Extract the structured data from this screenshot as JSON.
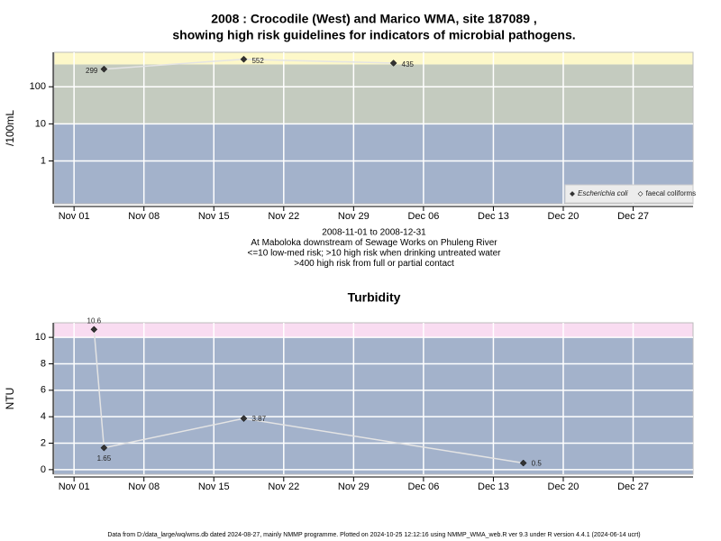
{
  "chart_data": [
    {
      "type": "line",
      "title": [
        "2008 : Crocodile (West) and Marico WMA, site 187089 ,",
        "showing high risk guidelines for indicators of microbial pathogens."
      ],
      "notes": [
        "2008-11-01 to 2008-12-31",
        "At Maboloka downstream of Sewage Works on Phuleng River",
        "<=10 low-med risk; >10 high risk when drinking untreated water",
        ">400 high risk from full or partial contact"
      ],
      "y_label": "/100mL",
      "log_y": true,
      "x": [
        "2008-11-04",
        "2008-11-18",
        "2008-12-03"
      ],
      "series": [
        {
          "name": "Escherichia coli",
          "color": "#333333",
          "values": [
            299,
            552,
            435
          ]
        },
        {
          "name": "faecal coliforms",
          "color": "#333333",
          "values": [
            null,
            null,
            null
          ]
        }
      ],
      "thresholds": [
        10,
        400
      ],
      "band_colors": [
        "#a3b2cb",
        "#c4cbbf",
        "#fdf8c9"
      ],
      "xlim": [
        "2008-10-30",
        "2009-01-02"
      ],
      "xticks": [
        {
          "value": "2008-11-01",
          "label": "Nov 01"
        },
        {
          "value": "2008-11-08",
          "label": "Nov 08"
        },
        {
          "value": "2008-11-15",
          "label": "Nov 15"
        },
        {
          "value": "2008-11-22",
          "label": "Nov 22"
        },
        {
          "value": "2008-11-29",
          "label": "Nov 29"
        },
        {
          "value": "2008-12-06",
          "label": "Dec 06"
        },
        {
          "value": "2008-12-13",
          "label": "Dec 13"
        },
        {
          "value": "2008-12-20",
          "label": "Dec 20"
        },
        {
          "value": "2008-12-27",
          "label": "Dec 27"
        }
      ],
      "ylim": [
        0.07,
        850
      ],
      "yticks": [
        1,
        10,
        100
      ],
      "grid": true,
      "legend": "bottom-right"
    },
    {
      "type": "line",
      "title": [
        "Turbidity"
      ],
      "y_label": "NTU",
      "log_y": false,
      "x": [
        "2008-11-03",
        "2008-11-04",
        "2008-11-18",
        "2008-12-16"
      ],
      "series": [
        {
          "color": "#333333",
          "values": [
            10.6,
            1.65,
            3.87,
            0.5
          ]
        }
      ],
      "thresholds": [
        10
      ],
      "band_colors": [
        "#a3b2cb",
        "#f9dcf1"
      ],
      "xlim": [
        "2008-10-30",
        "2009-01-02"
      ],
      "xticks": [
        {
          "value": "2008-11-01",
          "label": "Nov 01"
        },
        {
          "value": "2008-11-08",
          "label": "Nov 08"
        },
        {
          "value": "2008-11-15",
          "label": "Nov 15"
        },
        {
          "value": "2008-11-22",
          "label": "Nov 22"
        },
        {
          "value": "2008-11-29",
          "label": "Nov 29"
        },
        {
          "value": "2008-12-06",
          "label": "Dec 06"
        },
        {
          "value": "2008-12-13",
          "label": "Dec 13"
        },
        {
          "value": "2008-12-20",
          "label": "Dec 20"
        },
        {
          "value": "2008-12-27",
          "label": "Dec 27"
        }
      ],
      "ylim": [
        -0.35,
        11.1
      ],
      "yticks": [
        0,
        2,
        4,
        6,
        8,
        10
      ],
      "grid": true
    }
  ],
  "footer": "Data from D:/data_large/wq/wms.db dated 2024-08-27, mainly NMMP programme. Plotted on 2024-10-25 12:12:16 using NMMP_WMA_web.R ver 9.3 under R version 4.4.1 (2024-06-14 ucrt)"
}
